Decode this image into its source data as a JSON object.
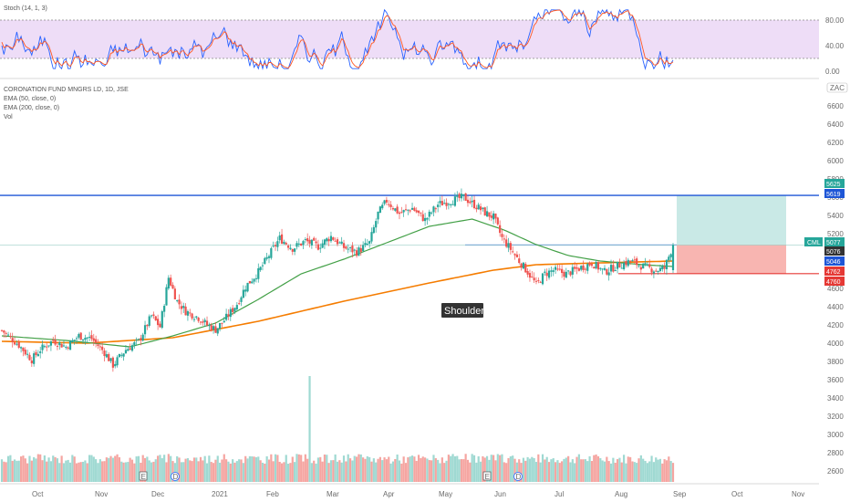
{
  "chart_data": {
    "type": "candlestick",
    "symbol_line": "CORONATION FUND MNGRS LD, 1D, JSE",
    "indicators": [
      "EMA (50, close, 0)",
      "EMA (200, close, 0)",
      "Vol"
    ],
    "stoch_label": "Stoch (14, 1, 3)",
    "stoch_levels": [
      "80.00",
      "40.00",
      "0.00"
    ],
    "stoch_band": [
      20,
      80
    ],
    "price_ticks": [
      "6600",
      "6400",
      "6200",
      "6000",
      "5800",
      "5600",
      "5400",
      "5200",
      "5000",
      "4800",
      "4600",
      "4400",
      "4200",
      "4000",
      "3800",
      "3600",
      "3400",
      "3200",
      "3000",
      "2800",
      "2600"
    ],
    "x_labels": [
      "Oct",
      "Nov",
      "Dec",
      "2021",
      "Feb",
      "Mar",
      "Apr",
      "May",
      "Jun",
      "Jul",
      "Aug",
      "Sep",
      "Oct",
      "Nov"
    ],
    "scale_button": "ZAC",
    "ticker_tag": "CML",
    "price_tags": [
      "5625",
      "5619",
      "5077",
      "5076",
      "5046",
      "4762",
      "4760"
    ],
    "resistance_price": 5619,
    "neckline_price": 5076,
    "stop_price": 4762,
    "target_price": 5625,
    "entry_price": 5077,
    "annotation": "Shoulder",
    "event_markers": [
      "E",
      "D",
      "E",
      "D",
      "E",
      "D",
      "E",
      "D"
    ],
    "price_path": [
      {
        "t": 0,
        "p": 4140
      },
      {
        "t": 8,
        "p": 3980
      },
      {
        "t": 14,
        "p": 3820
      },
      {
        "t": 18,
        "p": 3930
      },
      {
        "t": 24,
        "p": 4030
      },
      {
        "t": 30,
        "p": 3960
      },
      {
        "t": 36,
        "p": 4080
      },
      {
        "t": 42,
        "p": 4050
      },
      {
        "t": 48,
        "p": 3900
      },
      {
        "t": 52,
        "p": 3760
      },
      {
        "t": 58,
        "p": 3930
      },
      {
        "t": 64,
        "p": 4020
      },
      {
        "t": 70,
        "p": 4300
      },
      {
        "t": 74,
        "p": 4180
      },
      {
        "t": 78,
        "p": 4720
      },
      {
        "t": 82,
        "p": 4460
      },
      {
        "t": 86,
        "p": 4350
      },
      {
        "t": 92,
        "p": 4280
      },
      {
        "t": 96,
        "p": 4200
      },
      {
        "t": 100,
        "p": 4150
      },
      {
        "t": 104,
        "p": 4250
      },
      {
        "t": 110,
        "p": 4430
      },
      {
        "t": 114,
        "p": 4620
      },
      {
        "t": 120,
        "p": 4780
      },
      {
        "t": 126,
        "p": 5000
      },
      {
        "t": 130,
        "p": 5150
      },
      {
        "t": 136,
        "p": 5040
      },
      {
        "t": 142,
        "p": 5120
      },
      {
        "t": 148,
        "p": 5060
      },
      {
        "t": 154,
        "p": 5170
      },
      {
        "t": 160,
        "p": 5050
      },
      {
        "t": 166,
        "p": 5000
      },
      {
        "t": 172,
        "p": 5100
      },
      {
        "t": 176,
        "p": 5420
      },
      {
        "t": 180,
        "p": 5560
      },
      {
        "t": 186,
        "p": 5420
      },
      {
        "t": 192,
        "p": 5480
      },
      {
        "t": 198,
        "p": 5350
      },
      {
        "t": 204,
        "p": 5520
      },
      {
        "t": 210,
        "p": 5560
      },
      {
        "t": 216,
        "p": 5600
      },
      {
        "t": 222,
        "p": 5500
      },
      {
        "t": 226,
        "p": 5430
      },
      {
        "t": 230,
        "p": 5380
      },
      {
        "t": 234,
        "p": 5150
      },
      {
        "t": 238,
        "p": 5030
      },
      {
        "t": 242,
        "p": 4900
      },
      {
        "t": 246,
        "p": 4780
      },
      {
        "t": 250,
        "p": 4640
      },
      {
        "t": 254,
        "p": 4760
      },
      {
        "t": 258,
        "p": 4800
      },
      {
        "t": 264,
        "p": 4760
      },
      {
        "t": 270,
        "p": 4820
      },
      {
        "t": 276,
        "p": 4880
      },
      {
        "t": 282,
        "p": 4780
      },
      {
        "t": 288,
        "p": 4850
      },
      {
        "t": 294,
        "p": 4900
      },
      {
        "t": 300,
        "p": 4840
      },
      {
        "t": 306,
        "p": 4800
      },
      {
        "t": 310,
        "p": 4820
      },
      {
        "t": 314,
        "p": 5077
      }
    ],
    "ema50_path": [
      {
        "t": 0,
        "p": 4080
      },
      {
        "t": 30,
        "p": 4030
      },
      {
        "t": 60,
        "p": 3960
      },
      {
        "t": 80,
        "p": 4080
      },
      {
        "t": 100,
        "p": 4220
      },
      {
        "t": 120,
        "p": 4480
      },
      {
        "t": 140,
        "p": 4760
      },
      {
        "t": 160,
        "p": 4920
      },
      {
        "t": 180,
        "p": 5100
      },
      {
        "t": 200,
        "p": 5280
      },
      {
        "t": 220,
        "p": 5360
      },
      {
        "t": 235,
        "p": 5240
      },
      {
        "t": 250,
        "p": 5080
      },
      {
        "t": 265,
        "p": 4960
      },
      {
        "t": 280,
        "p": 4900
      },
      {
        "t": 300,
        "p": 4860
      },
      {
        "t": 314,
        "p": 4840
      }
    ],
    "ema200_path": [
      {
        "t": 0,
        "p": 4020
      },
      {
        "t": 40,
        "p": 4000
      },
      {
        "t": 80,
        "p": 4060
      },
      {
        "t": 120,
        "p": 4240
      },
      {
        "t": 160,
        "p": 4460
      },
      {
        "t": 200,
        "p": 4660
      },
      {
        "t": 230,
        "p": 4800
      },
      {
        "t": 250,
        "p": 4860
      },
      {
        "t": 280,
        "p": 4880
      },
      {
        "t": 314,
        "p": 4900
      }
    ],
    "volume_spike": {
      "t": 144,
      "v": 3500
    },
    "colors": {
      "up": "#26a69a",
      "down": "#ef5350",
      "ema50": "#43a047",
      "ema200": "#f57c00",
      "resistance": "#1e56d6",
      "stop": "#e53935",
      "target_zone": "#b2dfdb",
      "stop_zone": "#f7a8a3",
      "stoch_fill": "#e1bee7",
      "stoch_k": "#2962ff",
      "stoch_d": "#ff5722"
    }
  }
}
